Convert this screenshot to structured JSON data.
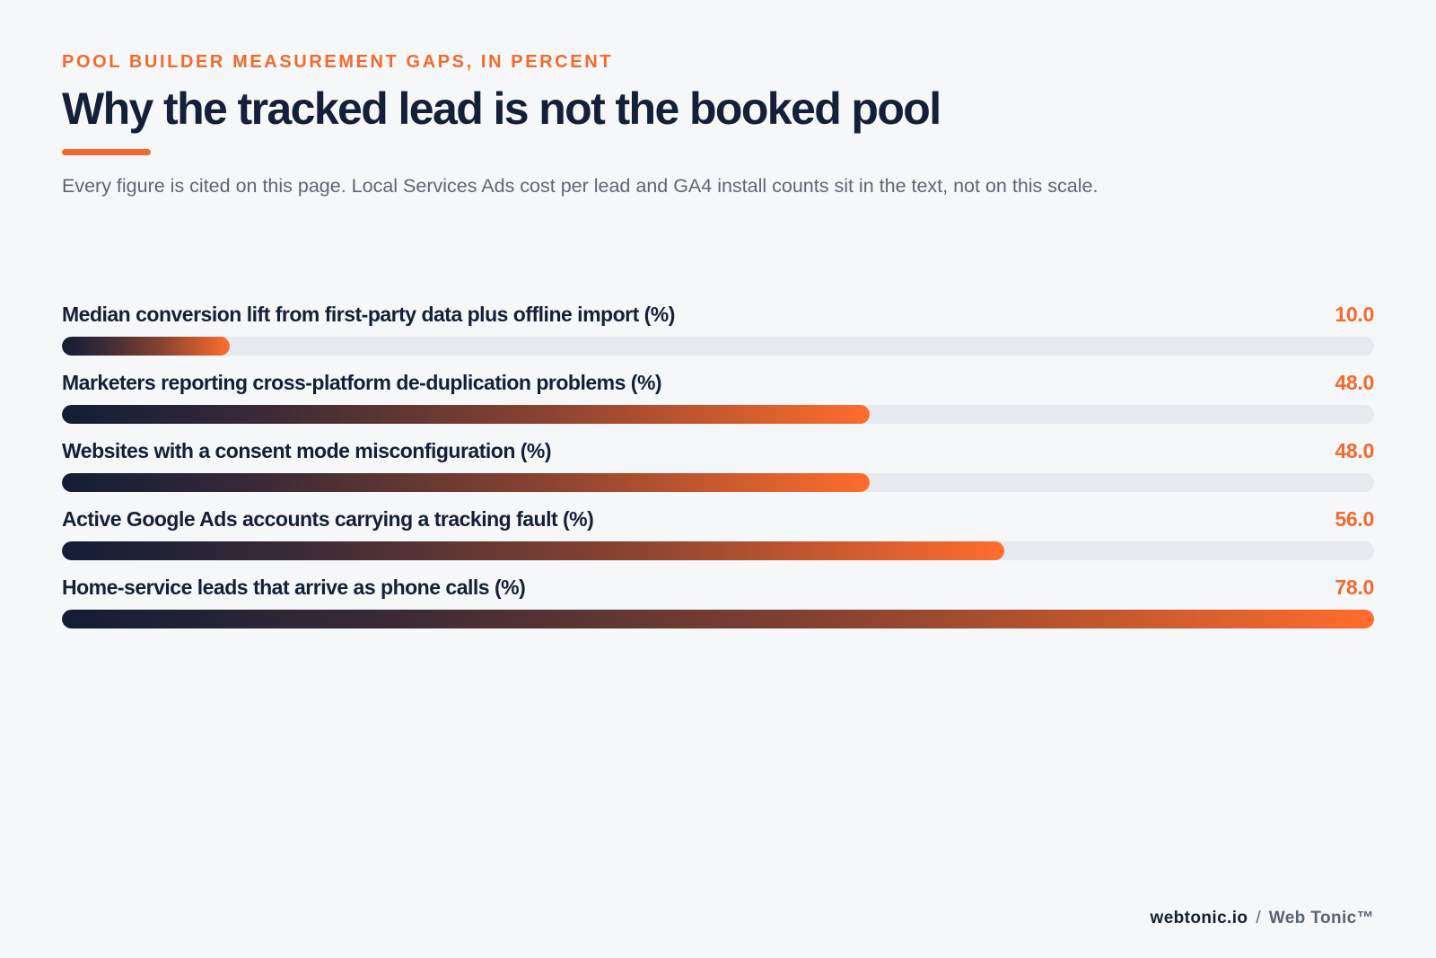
{
  "header": {
    "eyebrow": "POOL BUILDER MEASUREMENT GAPS, IN PERCENT",
    "title": "Why the tracked lead is not the booked pool",
    "subtitle": "Every figure is cited on this page. Local Services Ads cost per lead and GA4 install counts sit in the text, not on this scale."
  },
  "footer": {
    "domain": "webtonic.io",
    "separator": "/",
    "brand": "Web Tonic™"
  },
  "colors": {
    "accent": "#f26a2e",
    "navy": "#142038",
    "track": "#e6e9ee",
    "gradient_start": "#121d35",
    "gradient_end": "#ff6d2d"
  },
  "chart_data": {
    "type": "bar",
    "orientation": "horizontal",
    "title": "Why the tracked lead is not the booked pool",
    "xlim": [
      0,
      78
    ],
    "categories": [
      "Median conversion lift from first-party data plus offline import (%)",
      "Marketers reporting cross-platform de-duplication problems (%)",
      "Websites with a consent mode misconfiguration (%)",
      "Active Google Ads accounts carrying a tracking fault (%)",
      "Home-service leads that arrive as phone calls (%)"
    ],
    "values": [
      10.0,
      48.0,
      48.0,
      56.0,
      78.0
    ],
    "value_labels": [
      "10.0",
      "48.0",
      "48.0",
      "56.0",
      "78.0"
    ],
    "grid": false,
    "legend": "none"
  }
}
